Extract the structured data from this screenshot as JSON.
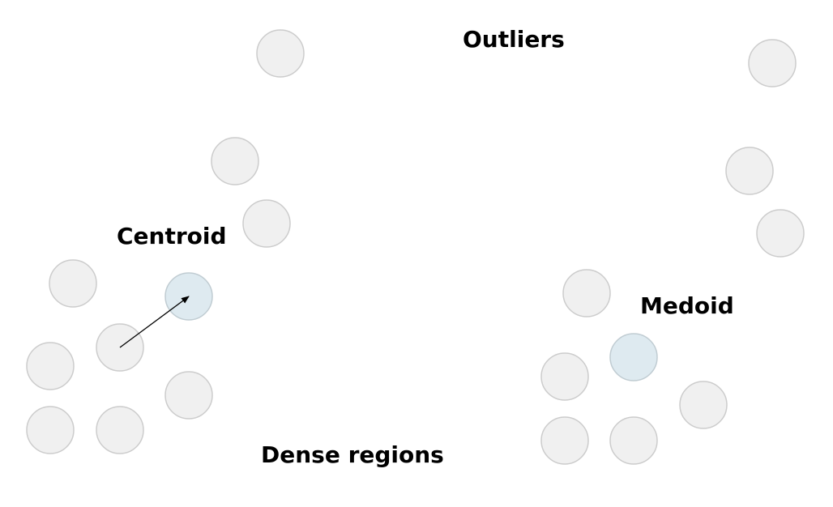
{
  "labels": {
    "outliers": "Outliers",
    "centroid": "Centroid",
    "medoid": "Medoid",
    "dense_regions": "Dense regions"
  },
  "colors": {
    "point_fill": "#f0f0f0",
    "point_stroke": "#cccccc",
    "highlight_fill": "#deeaf0",
    "highlight_stroke": "#c0ccd2",
    "arrow": "#000000",
    "text": "#000000"
  }
}
